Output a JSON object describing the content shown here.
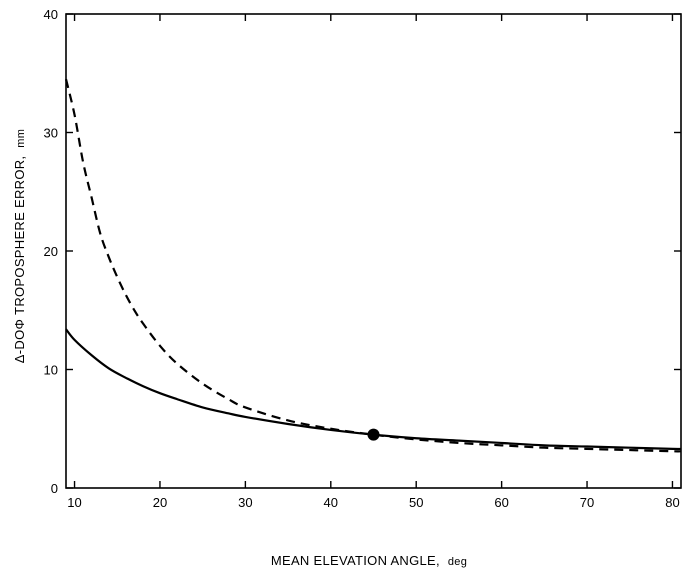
{
  "chart_data": {
    "type": "line",
    "title": "",
    "xlabel": "MEAN ELEVATION ANGLE,",
    "xlabel_unit": "deg",
    "ylabel": "Δ-DOΦ TROPOSPHERE ERROR,",
    "ylabel_unit": "mm",
    "xlim": [
      9,
      81
    ],
    "ylim": [
      0,
      40
    ],
    "xticks": [
      10,
      20,
      30,
      40,
      50,
      60,
      70,
      80
    ],
    "yticks": [
      0,
      10,
      20,
      30,
      40
    ],
    "grid": false,
    "legend": "none",
    "series": [
      {
        "line_style": "solid",
        "color": "#000000",
        "x": [
          9,
          10,
          12,
          14,
          16,
          18,
          20,
          22,
          25,
          28,
          30,
          35,
          40,
          45,
          50,
          55,
          60,
          65,
          70,
          75,
          80,
          81
        ],
        "y": [
          13.4,
          12.5,
          11.2,
          10.1,
          9.3,
          8.6,
          8.0,
          7.5,
          6.8,
          6.3,
          6.0,
          5.4,
          4.9,
          4.5,
          4.2,
          4.0,
          3.8,
          3.6,
          3.5,
          3.4,
          3.3,
          3.3
        ]
      },
      {
        "line_style": "dashed",
        "color": "#000000",
        "x": [
          9,
          10,
          11,
          12,
          13,
          14,
          15,
          16,
          17,
          18,
          20,
          22,
          25,
          28,
          30,
          35,
          40,
          45,
          50,
          55,
          60,
          65,
          70,
          75,
          80,
          81
        ],
        "y": [
          34.5,
          31.5,
          27.5,
          24.5,
          21.5,
          19.5,
          17.8,
          16.3,
          15.0,
          13.9,
          12.0,
          10.5,
          8.8,
          7.5,
          6.8,
          5.7,
          5.0,
          4.5,
          4.1,
          3.8,
          3.6,
          3.4,
          3.3,
          3.2,
          3.1,
          3.1
        ]
      }
    ],
    "markers": [
      {
        "x": 45,
        "y": 4.5,
        "shape": "filled-circle"
      }
    ]
  }
}
